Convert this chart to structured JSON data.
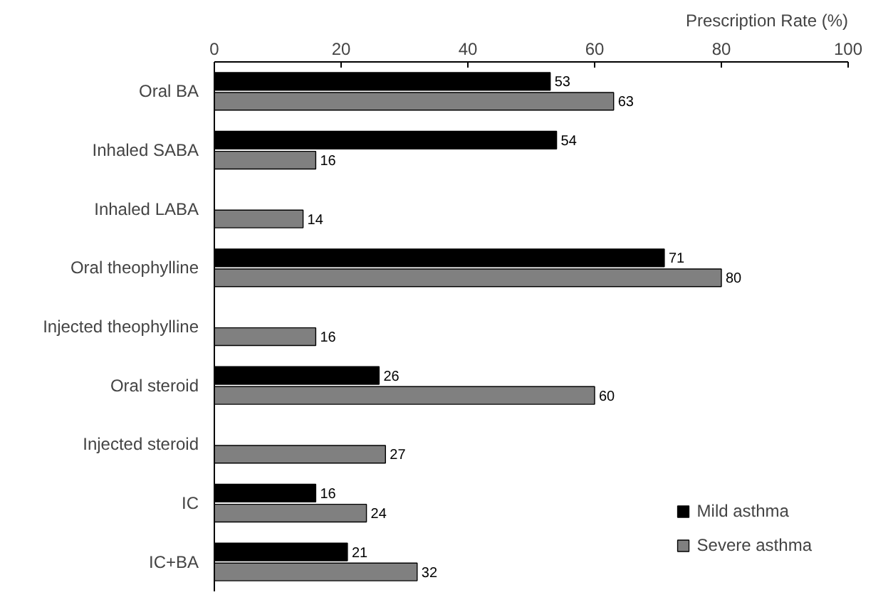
{
  "chart_data": {
    "type": "bar",
    "orientation": "horizontal",
    "xlabel": "Prescription Rate (%)",
    "categories": [
      "Oral BA",
      "Inhaled SABA",
      "Inhaled LABA",
      "Oral theophylline",
      "Injected theophylline",
      "Oral steroid",
      "Injected steroid",
      "IC",
      "IC+BA"
    ],
    "series": [
      {
        "name": "Mild asthma",
        "color": "#000000",
        "values": [
          53,
          54,
          null,
          71,
          null,
          26,
          null,
          16,
          21
        ]
      },
      {
        "name": "Severe asthma",
        "color": "#808080",
        "values": [
          63,
          16,
          14,
          80,
          16,
          60,
          27,
          24,
          32
        ]
      }
    ],
    "xlim": [
      0,
      100
    ],
    "xticks": [
      0,
      20,
      40,
      60,
      80,
      100
    ],
    "data_labels": true,
    "legend": "bottom right",
    "grid": false
  }
}
